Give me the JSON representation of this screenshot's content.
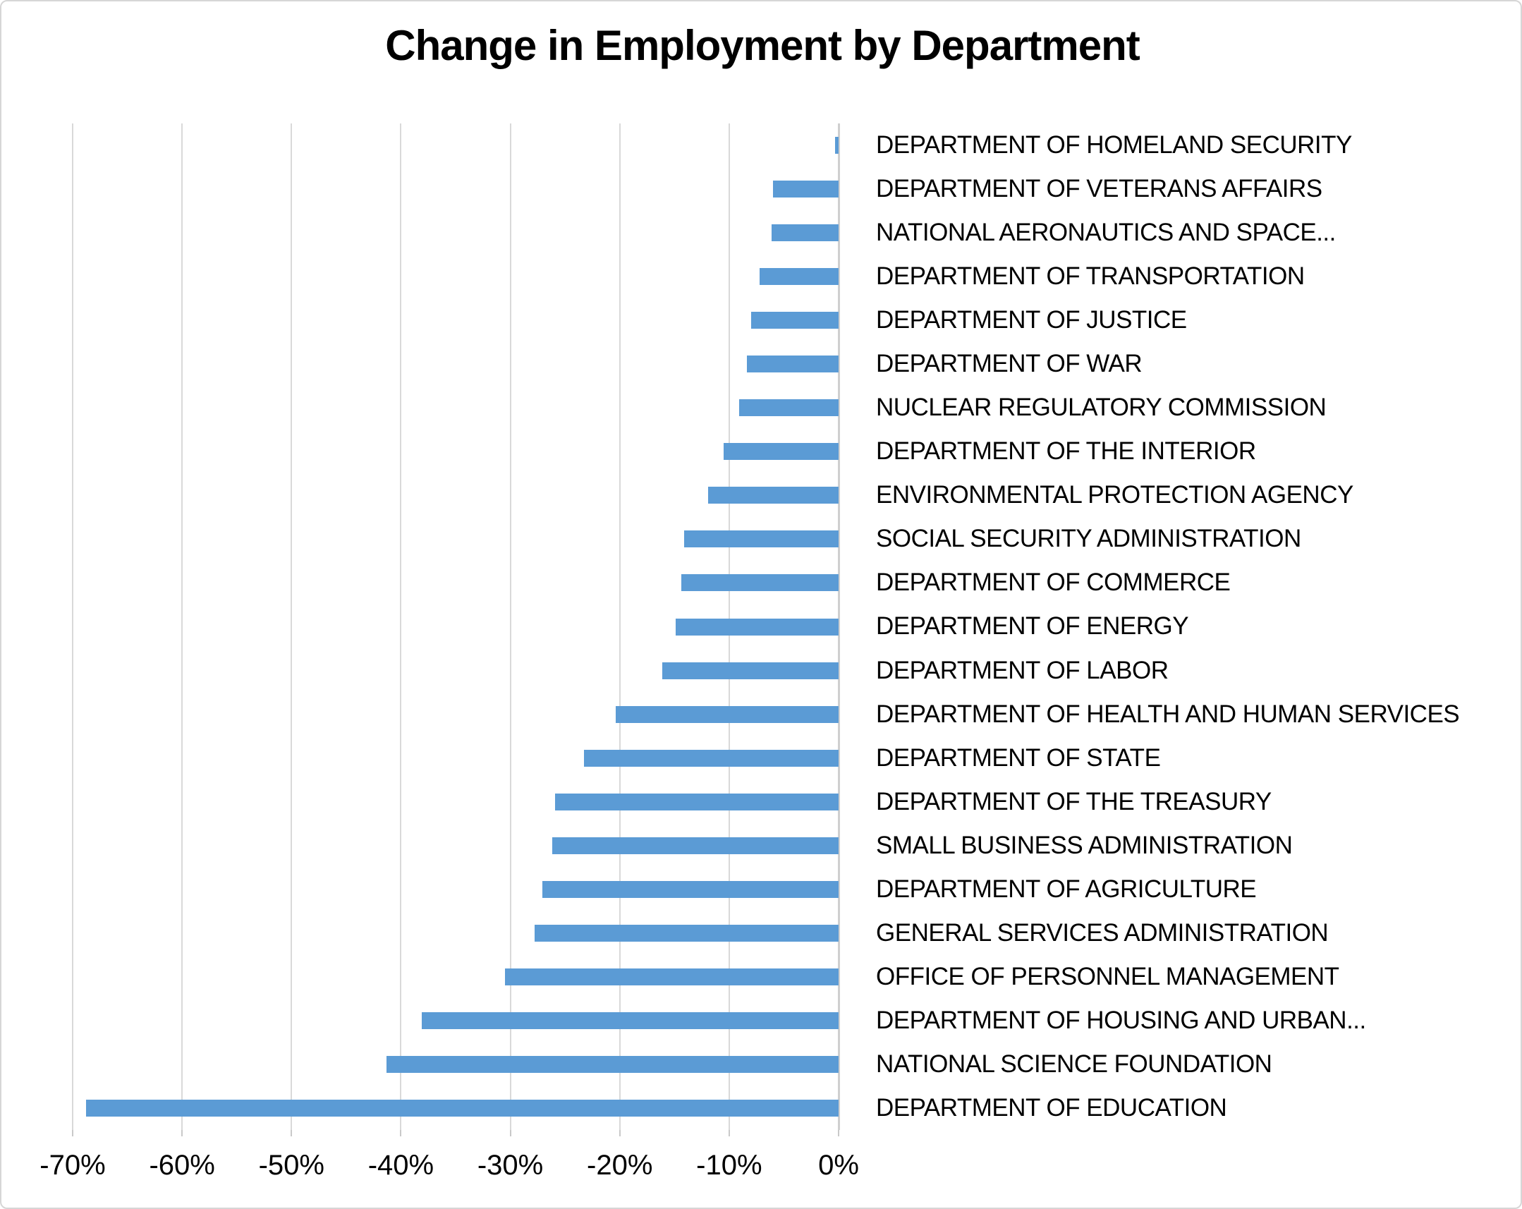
{
  "chart_data": {
    "type": "bar",
    "orientation": "horizontal",
    "title": "Change in Employment by Department",
    "categories": [
      "DEPARTMENT OF HOMELAND SECURITY",
      "DEPARTMENT OF VETERANS AFFAIRS",
      "NATIONAL AERONAUTICS AND SPACE...",
      "DEPARTMENT OF TRANSPORTATION",
      "DEPARTMENT OF JUSTICE",
      "DEPARTMENT OF WAR",
      "NUCLEAR REGULATORY COMMISSION",
      "DEPARTMENT OF THE INTERIOR",
      "ENVIRONMENTAL PROTECTION AGENCY",
      "SOCIAL SECURITY ADMINISTRATION",
      "DEPARTMENT OF COMMERCE",
      "DEPARTMENT OF ENERGY",
      "DEPARTMENT OF LABOR",
      "DEPARTMENT OF HEALTH AND HUMAN SERVICES",
      "DEPARTMENT OF STATE",
      "DEPARTMENT OF THE TREASURY",
      "SMALL BUSINESS ADMINISTRATION",
      "DEPARTMENT OF AGRICULTURE",
      "GENERAL SERVICES ADMINISTRATION",
      "OFFICE OF PERSONNEL MANAGEMENT",
      "DEPARTMENT OF HOUSING AND URBAN...",
      "NATIONAL SCIENCE FOUNDATION",
      "DEPARTMENT OF EDUCATION"
    ],
    "values": [
      -0.3,
      -6.0,
      -6.1,
      -7.2,
      -8.0,
      -8.4,
      -9.1,
      -10.5,
      -11.9,
      -14.1,
      -14.4,
      -14.9,
      -16.1,
      -20.4,
      -23.3,
      -25.9,
      -26.2,
      -27.1,
      -27.8,
      -30.5,
      -38.1,
      -41.3,
      -68.8
    ],
    "unit": "%",
    "xlabel": "",
    "ylabel": "",
    "xlim": [
      -70,
      0
    ],
    "x_tick_values": [
      -70,
      -60,
      -50,
      -40,
      -30,
      -20,
      -10,
      0
    ],
    "x_tick_labels": [
      "-70%",
      "-60%",
      "-50%",
      "-40%",
      "-30%",
      "-20%",
      "-10%",
      "0%"
    ],
    "grid": true,
    "legend": "none",
    "bar_color": "#5B9BD5",
    "gridline_color": "#D9D9D9",
    "axis_color": "#CFCFCF",
    "text_color": "#000000",
    "background_color": "#FFFFFF"
  }
}
